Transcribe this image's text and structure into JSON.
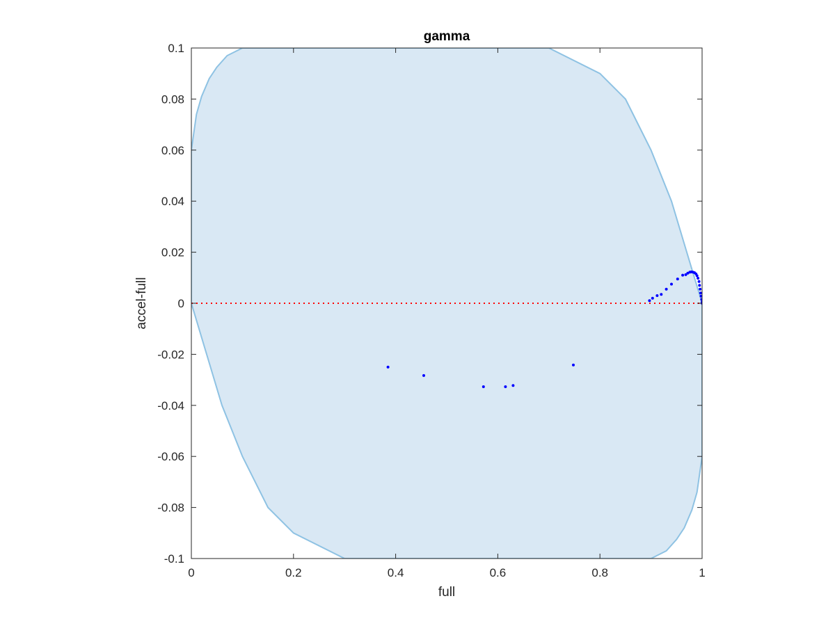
{
  "chart_data": {
    "type": "scatter",
    "title": "gamma",
    "xlabel": "full",
    "ylabel": "accel-full",
    "xlim": [
      0,
      1
    ],
    "ylim": [
      -0.1,
      0.1
    ],
    "xticks": [
      0,
      0.2,
      0.4,
      0.6,
      0.8,
      1
    ],
    "xtick_labels": [
      "0",
      "0.2",
      "0.4",
      "0.6",
      "0.8",
      "1"
    ],
    "yticks": [
      -0.1,
      -0.08,
      -0.06,
      -0.04,
      -0.02,
      0,
      0.02,
      0.04,
      0.06,
      0.08,
      0.1
    ],
    "ytick_labels": [
      "-0.1",
      "-0.08",
      "-0.06",
      "-0.04",
      "-0.02",
      "0",
      "0.02",
      "0.04",
      "0.06",
      "0.08",
      "0.1"
    ],
    "grid": false,
    "reference_line": {
      "y": 0,
      "color": "#ff0000",
      "style": "dotted"
    },
    "region": {
      "fill": "#d9e8f4",
      "edge": "#8ec2e3",
      "boundary": [
        [
          0.0,
          0.06
        ],
        [
          0.01,
          0.074
        ],
        [
          0.02,
          0.081
        ],
        [
          0.035,
          0.088
        ],
        [
          0.05,
          0.0925
        ],
        [
          0.07,
          0.097
        ],
        [
          0.1,
          0.1
        ],
        [
          0.7,
          0.1
        ],
        [
          0.8,
          0.09
        ],
        [
          0.85,
          0.08
        ],
        [
          0.9,
          0.06
        ],
        [
          0.94,
          0.04
        ],
        [
          0.97,
          0.02
        ],
        [
          1.0,
          0.0
        ],
        [
          1.0,
          -0.06
        ],
        [
          0.99,
          -0.074
        ],
        [
          0.98,
          -0.081
        ],
        [
          0.965,
          -0.088
        ],
        [
          0.95,
          -0.0925
        ],
        [
          0.93,
          -0.097
        ],
        [
          0.9,
          -0.1
        ],
        [
          0.3,
          -0.1
        ],
        [
          0.2,
          -0.09
        ],
        [
          0.15,
          -0.08
        ],
        [
          0.1,
          -0.06
        ],
        [
          0.06,
          -0.04
        ],
        [
          0.03,
          -0.02
        ],
        [
          0.0,
          0.0
        ]
      ]
    },
    "series": [
      {
        "color": "#0000ff",
        "points": [
          [
            0.385,
            -0.025
          ],
          [
            0.455,
            -0.0283
          ],
          [
            0.572,
            -0.0327
          ],
          [
            0.615,
            -0.0327
          ],
          [
            0.63,
            -0.0322
          ],
          [
            0.748,
            -0.0242
          ],
          [
            0.897,
            0.001
          ],
          [
            0.903,
            0.002
          ],
          [
            0.912,
            0.003
          ],
          [
            0.92,
            0.0035
          ],
          [
            0.93,
            0.0055
          ],
          [
            0.94,
            0.0075
          ],
          [
            0.952,
            0.0095
          ],
          [
            0.962,
            0.011
          ],
          [
            0.968,
            0.0112
          ],
          [
            0.972,
            0.0118
          ],
          [
            0.976,
            0.0122
          ],
          [
            0.979,
            0.0123
          ],
          [
            0.982,
            0.0122
          ],
          [
            0.985,
            0.012
          ],
          [
            0.988,
            0.0115
          ],
          [
            0.99,
            0.0108
          ],
          [
            0.992,
            0.0098
          ],
          [
            0.994,
            0.0085
          ],
          [
            0.995,
            0.007
          ],
          [
            0.996,
            0.0055
          ],
          [
            0.997,
            0.004
          ],
          [
            0.998,
            0.0028
          ],
          [
            0.999,
            0.0015
          ],
          [
            1.0,
            0.0005
          ],
          [
            1.0,
            0.0
          ]
        ]
      }
    ]
  }
}
